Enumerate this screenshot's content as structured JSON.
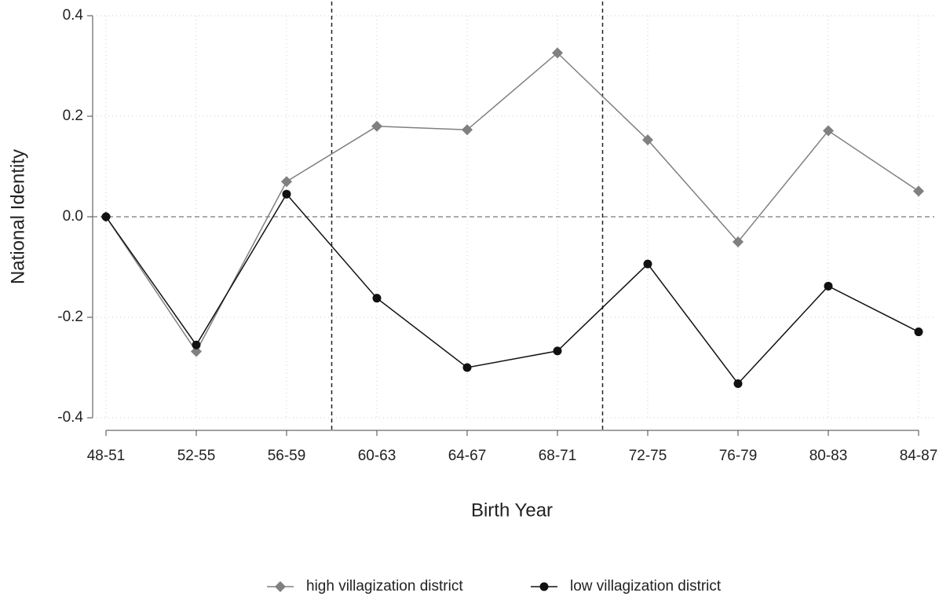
{
  "chart_data": {
    "type": "line",
    "x_label": "Birth Year",
    "y_label": "National Identity",
    "categories": [
      "48-51",
      "52-55",
      "56-59",
      "60-63",
      "64-67",
      "68-71",
      "72-75",
      "76-79",
      "80-83",
      "84-87"
    ],
    "series": [
      {
        "name": "high villagization district",
        "color": "#808080",
        "marker": "diamond",
        "values": [
          0,
          -0.268,
          0.07,
          0.18,
          0.173,
          0.326,
          0.153,
          -0.05,
          0.171,
          0.051
        ]
      },
      {
        "name": "low villagization district",
        "color": "#111111",
        "marker": "circle",
        "values": [
          0,
          -0.255,
          0.045,
          -0.162,
          -0.3,
          -0.267,
          -0.094,
          -0.332,
          -0.138,
          -0.229
        ]
      }
    ],
    "ylim": [
      -0.4,
      0.4
    ],
    "yticks": [
      0.4,
      0.2,
      {
        "value": 0,
        "label": "0.0"
      },
      -0.2,
      -0.4
    ],
    "grid": true
  }
}
